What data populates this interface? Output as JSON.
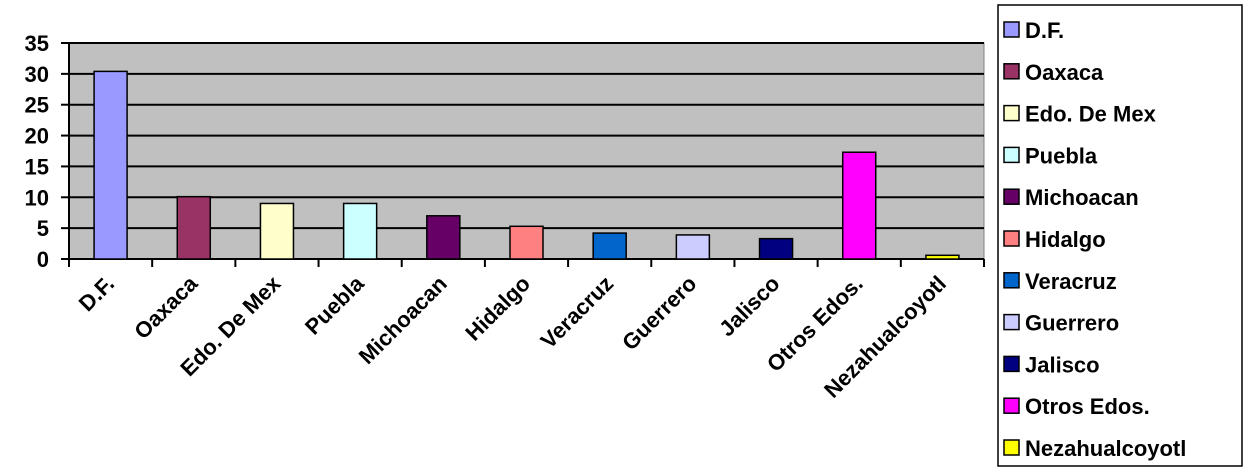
{
  "chart_data": {
    "type": "bar",
    "title": "",
    "xlabel": "",
    "ylabel": "",
    "ylim": [
      0,
      35
    ],
    "yticks": [
      0,
      5,
      10,
      15,
      20,
      25,
      30,
      35
    ],
    "grid": true,
    "legend_position": "right",
    "plot_background": "#c0c0c0",
    "categories": [
      "D.F.",
      "Oaxaca",
      "Edo. De Mex",
      "Puebla",
      "Michoacan",
      "Hidalgo",
      "Veracruz",
      "Guerrero",
      "Jalisco",
      "Otros Edos.",
      "Nezahualcoyotl"
    ],
    "values": [
      30.4,
      10.1,
      9.0,
      9.0,
      7.0,
      5.3,
      4.2,
      3.9,
      3.3,
      17.3,
      0.6
    ],
    "colors": [
      "#9999ff",
      "#993366",
      "#ffffcc",
      "#ccffff",
      "#660066",
      "#ff8080",
      "#0066cc",
      "#ccccff",
      "#000080",
      "#ff00ff",
      "#ffff00"
    ],
    "legend": [
      "D.F.",
      "Oaxaca",
      "Edo. De Mex",
      "Puebla",
      "Michoacan",
      "Hidalgo",
      "Veracruz",
      "Guerrero",
      "Jalisco",
      "Otros Edos.",
      "Nezahualcoyotl"
    ]
  }
}
